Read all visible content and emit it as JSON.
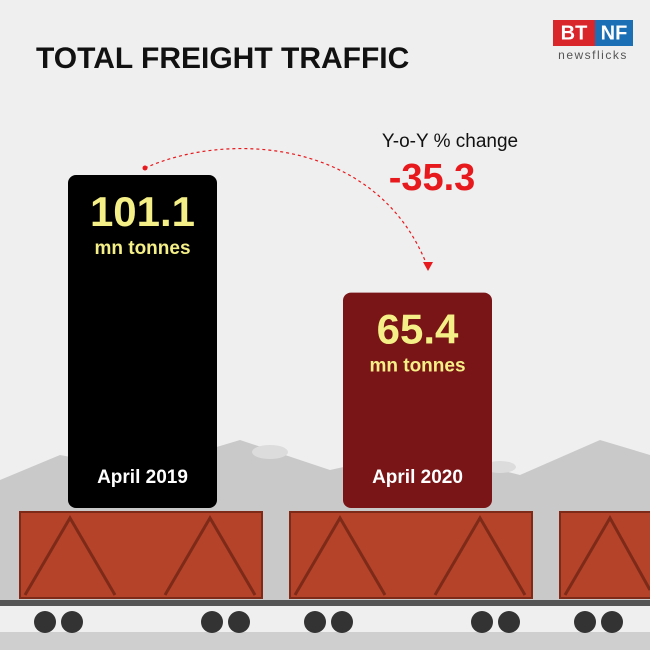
{
  "chart_data": {
    "type": "bar",
    "title": "TOTAL FREIGHT TRAFFIC",
    "categories": [
      "April 2019",
      "April 2020"
    ],
    "values": [
      101.1,
      65.4
    ],
    "colors": [
      "#000000",
      "#7a1517"
    ],
    "unit": "mn tonnes",
    "annotation": {
      "label": "Y-o-Y % change",
      "value": -35.3
    },
    "logo": {
      "left": "BT",
      "right": "NF",
      "sub": "newsflicks"
    }
  }
}
